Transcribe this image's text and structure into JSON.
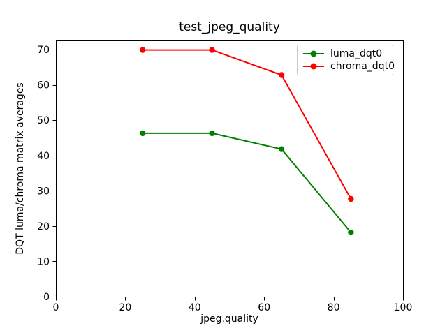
{
  "figure": {
    "background": "#ffffff",
    "axis_color": "#000000",
    "tick_color": "#000000",
    "legend_border_color": "#c9c9c9"
  },
  "chart_data": {
    "type": "line",
    "title": "test_jpeg_quality",
    "xlabel": "jpeg.quality",
    "ylabel": "DQT luma/chroma matrix averages",
    "x": [
      25,
      45,
      65,
      85
    ],
    "series": [
      {
        "name": "luma_dqt0",
        "color": "#008000",
        "marker": "circle",
        "values": [
          46.3,
          46.3,
          41.8,
          18.2
        ]
      },
      {
        "name": "chroma_dqt0",
        "color": "#ff0000",
        "marker": "circle",
        "values": [
          69.9,
          69.9,
          62.8,
          27.7
        ]
      }
    ],
    "xlim": [
      0,
      100
    ],
    "ylim": [
      0,
      72.6
    ],
    "xticks": [
      0,
      20,
      40,
      60,
      80,
      100
    ],
    "yticks": [
      0,
      10,
      20,
      30,
      40,
      50,
      60,
      70
    ],
    "grid": false,
    "legend_position": "upper-right"
  }
}
